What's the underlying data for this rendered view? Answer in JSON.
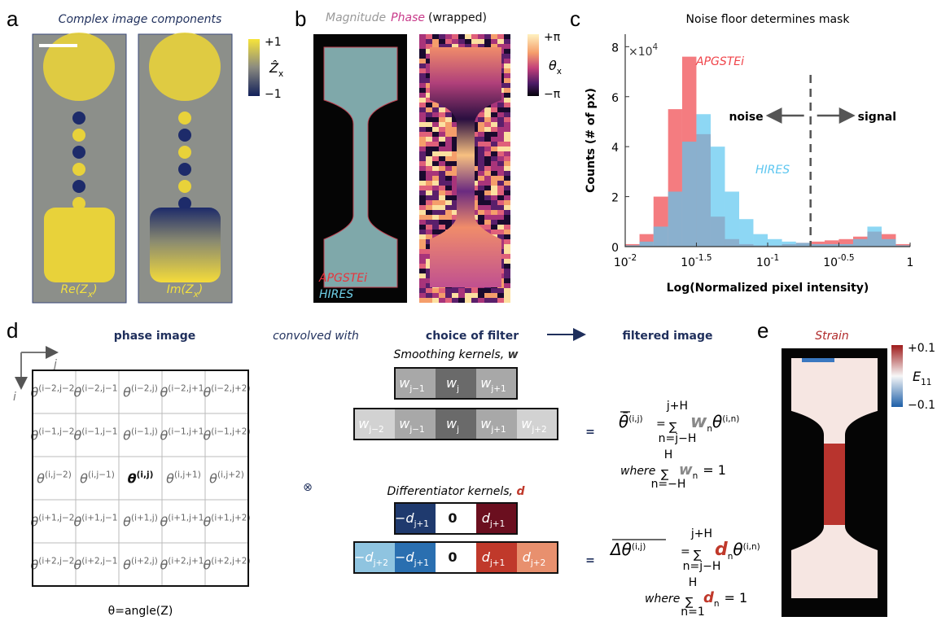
{
  "panel_a": {
    "letter": "a",
    "title": "Complex image components",
    "colorbar": {
      "max": "+1",
      "min": "−1",
      "symbol": "Ẑ",
      "symbol_sub": "x"
    },
    "images": [
      {
        "label": "Re(Z",
        "sub": "x",
        "close": ")"
      },
      {
        "label": "Im(Z",
        "sub": "x",
        "close": ")"
      }
    ]
  },
  "panel_b": {
    "letter": "b",
    "title_parts": [
      "Magnitude",
      "Phase",
      "(wrapped)"
    ],
    "colorbar": {
      "max": "+π",
      "min": "−π",
      "symbol": "θ",
      "symbol_sub": "x"
    },
    "legend": [
      "APGSTEi",
      "HIRES"
    ]
  },
  "chart_data": {
    "type": "histogram",
    "letter": "c",
    "title": "Noise floor determines mask",
    "xlabel": "Log(Normalized pixel intensity)",
    "ylabel": "Counts (# of px)",
    "y_multiplier": {
      "label": "×10",
      "exponent": "4"
    },
    "xscale": "log",
    "xlim": [
      0.01,
      1
    ],
    "xticks": [
      {
        "value": 0.01,
        "label": "10",
        "exponent": "-2"
      },
      {
        "value": 0.0316,
        "label": "10",
        "exponent": "-1.5"
      },
      {
        "value": 0.1,
        "label": "10",
        "exponent": "-1"
      },
      {
        "value": 0.316,
        "label": "10",
        "exponent": "-0.5"
      },
      1
    ],
    "ylim": [
      0,
      8.5
    ],
    "yticks": [
      0,
      2,
      4,
      6,
      8
    ],
    "bins": [
      0.01,
      0.0126,
      0.0158,
      0.02,
      0.0251,
      0.0316,
      0.0398,
      0.0501,
      0.0631,
      0.0794,
      0.1,
      0.126,
      0.158,
      0.2,
      0.251,
      0.316,
      0.398,
      0.501,
      0.631,
      0.794,
      1
    ],
    "series": [
      {
        "name": "APGSTEi",
        "color": "#f0444a",
        "values": [
          0.1,
          0.5,
          2.0,
          5.5,
          7.6,
          4.5,
          1.2,
          0.3,
          0.1,
          0.05,
          0.05,
          0.1,
          0.15,
          0.2,
          0.25,
          0.3,
          0.4,
          0.6,
          0.5,
          0.1
        ]
      },
      {
        "name": "HIRES",
        "color": "#5cc6f0",
        "values": [
          0.05,
          0.2,
          0.8,
          2.2,
          4.2,
          5.3,
          4.0,
          2.2,
          1.1,
          0.5,
          0.3,
          0.2,
          0.15,
          0.1,
          0.1,
          0.1,
          0.3,
          0.8,
          0.3,
          0.05
        ]
      }
    ],
    "threshold": 0.2,
    "annotations": [
      "noise",
      "signal"
    ]
  },
  "panel_d": {
    "letter": "d",
    "headers": [
      "phase image",
      "convolved with",
      "choice of filter",
      "filtered image"
    ],
    "symbol": "θ",
    "axis_i": "i",
    "axis_j": "j",
    "grid": [
      [
        "(i−2,j−2)",
        "(i−2,j−1)",
        "(i−2,j)",
        "(i−2,j+1)",
        "(i−2,j+2)"
      ],
      [
        "(i−1,j−2)",
        "(i−1,j−1)",
        "(i−1,j)",
        "(i−1,j+1)",
        "(i−1,j+2)"
      ],
      [
        "(i,j−2)",
        "(i,j−1)",
        "(i,j)",
        "(i,j+1)",
        "(i,j+2)"
      ],
      [
        "(i+1,j−2)",
        "(i+1,j−1)",
        "(i+1,j)",
        "(i+1,j+1)",
        "(i+1,j+2)"
      ],
      [
        "(i+2,j−2)",
        "(i+2,j−1)",
        "(i+2,j)",
        "(i+2,j+1)",
        "(i+2,j+2)"
      ]
    ],
    "caption": "θ=angle(Z)",
    "operator": "⊗",
    "equals": "=",
    "smoothing": {
      "title": "Smoothing kernels, ",
      "var": "w",
      "rows": [
        [
          {
            "label": "w",
            "sub": "j−1",
            "color": "#a8a8a8"
          },
          {
            "label": "w",
            "sub": "j",
            "color": "#6a6a6a"
          },
          {
            "label": "w",
            "sub": "j+1",
            "color": "#a8a8a8"
          }
        ],
        [
          {
            "label": "w",
            "sub": "j−2",
            "color": "#d2d2d2"
          },
          {
            "label": "w",
            "sub": "j−1",
            "color": "#a8a8a8"
          },
          {
            "label": "w",
            "sub": "j",
            "color": "#6a6a6a"
          },
          {
            "label": "w",
            "sub": "j+1",
            "color": "#a8a8a8"
          },
          {
            "label": "w",
            "sub": "j+2",
            "color": "#d2d2d2"
          }
        ]
      ]
    },
    "differentiator": {
      "title": "Differentiator kernels, ",
      "var": "d",
      "rows": [
        [
          {
            "label": "−d",
            "sub": "j+1",
            "color": "#1f3a6e"
          },
          {
            "label": "0",
            "sub": "",
            "color": "#ffffff"
          },
          {
            "label": "d",
            "sub": "j+1",
            "color": "#6b0f1f"
          }
        ],
        [
          {
            "label": "−d",
            "sub": "j+2",
            "color": "#8fc4e0"
          },
          {
            "label": "−d",
            "sub": "j+1",
            "color": "#2a6fb0"
          },
          {
            "label": "0",
            "sub": "",
            "color": "#ffffff"
          },
          {
            "label": "d",
            "sub": "j+1",
            "color": "#c0392b"
          },
          {
            "label": "d",
            "sub": "j+2",
            "color": "#e8906e"
          }
        ]
      ]
    },
    "eq_smooth": {
      "lhs": "θ̄",
      "lhs_sup": "(i,j)",
      "sum": "∑",
      "upper": "j+H",
      "lower": "n=j−H",
      "term": "w",
      "term_sub": "n",
      "var": "θ",
      "var_sup": "(i,n)",
      "where": "where",
      "where_upper": "H",
      "where_lower": "n=−H",
      "where_tail": "= 1"
    },
    "eq_diff": {
      "lhs": "Δθ",
      "lhs_sup": "(i,j)",
      "sum": "∑",
      "upper": "j+H",
      "lower": "n=j−H",
      "term": "d",
      "term_sub": "n",
      "var": "θ",
      "var_sup": "(i,n)",
      "where": "where",
      "where_upper": "H",
      "where_lower": "n=1",
      "where_tail": "= 1"
    }
  },
  "panel_e": {
    "letter": "e",
    "title": "Strain",
    "colorbar": {
      "max": "+0.1",
      "min": "−0.1",
      "symbol": "E",
      "symbol_sub": "11"
    }
  }
}
